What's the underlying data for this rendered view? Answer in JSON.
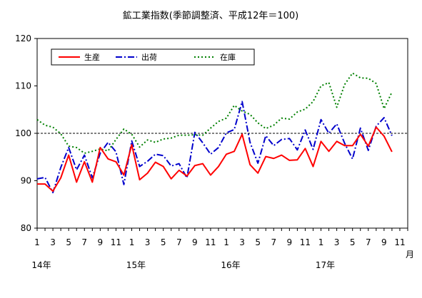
{
  "chart_data": {
    "type": "line",
    "title": "鉱工業指数(季節調整済、平成12年＝100)",
    "xlabel": "月",
    "ylabel": "",
    "ylim": [
      80,
      120
    ],
    "yticks": [
      "80",
      "90",
      "100",
      "110",
      "120"
    ],
    "x": [
      1,
      2,
      3,
      4,
      5,
      6,
      7,
      8,
      9,
      10,
      11,
      12,
      1,
      2,
      3,
      4,
      5,
      6,
      7,
      8,
      9,
      10,
      11,
      12,
      1,
      2,
      3,
      4,
      5,
      6,
      7,
      8,
      9,
      10,
      11,
      12,
      1,
      2,
      3,
      4,
      5,
      6,
      7,
      8,
      9,
      10
    ],
    "xtick_labels": [
      "1",
      "3",
      "5",
      "7",
      "9",
      "11",
      "1",
      "3",
      "5",
      "7",
      "9",
      "11",
      "1",
      "3",
      "5",
      "7",
      "9",
      "11",
      "1",
      "3",
      "5",
      "7",
      "9",
      "11"
    ],
    "years": [
      "14年",
      "15年",
      "16年",
      "17年"
    ],
    "reference_line": 100,
    "legend_position": "top-left",
    "grid": false,
    "series": [
      {
        "name": "生産",
        "color": "#ff0000",
        "style": "solid",
        "values": [
          89.3,
          89.3,
          87.8,
          90.6,
          95.4,
          89.7,
          94.0,
          89.7,
          97.0,
          94.6,
          94.0,
          91.2,
          97.6,
          90.2,
          91.6,
          93.9,
          93.0,
          90.4,
          92.2,
          91.0,
          93.2,
          93.6,
          91.2,
          93.0,
          95.6,
          96.2,
          99.8,
          93.4,
          91.6,
          95.1,
          94.7,
          95.4,
          94.3,
          94.4,
          96.8,
          93.0,
          98.3,
          96.2,
          98.3,
          97.4,
          97.4,
          99.8,
          97.3,
          101.3,
          99.4,
          96.1
        ]
      },
      {
        "name": "出荷",
        "color": "#0000cc",
        "style": "dashdot",
        "values": [
          90.4,
          90.7,
          87.5,
          92.8,
          97.0,
          92.3,
          95.4,
          90.6,
          95.8,
          98.1,
          96.1,
          89.2,
          98.4,
          93.0,
          94.1,
          95.6,
          95.3,
          93.1,
          93.6,
          90.6,
          100.2,
          98.0,
          95.6,
          97.0,
          100.1,
          100.8,
          106.7,
          98.1,
          93.7,
          99.5,
          97.4,
          98.7,
          98.9,
          96.5,
          100.7,
          96.6,
          102.9,
          100.0,
          102.0,
          97.9,
          94.6,
          101.1,
          96.4,
          101.5,
          103.3,
          99.5
        ]
      },
      {
        "name": "在庫",
        "color": "#008000",
        "style": "dotted",
        "values": [
          102.9,
          101.7,
          101.3,
          99.9,
          97.3,
          97.0,
          95.8,
          96.2,
          96.7,
          96.3,
          98.7,
          100.9,
          99.8,
          97.1,
          98.6,
          98.1,
          98.8,
          99.0,
          99.6,
          99.6,
          99.7,
          99.6,
          101.1,
          102.5,
          103.2,
          105.9,
          104.7,
          104.0,
          102.2,
          101.0,
          101.7,
          103.2,
          103.0,
          104.5,
          105.1,
          106.7,
          110.0,
          110.7,
          105.5,
          110.3,
          112.7,
          111.7,
          111.6,
          110.5,
          105.2,
          108.7
        ]
      }
    ]
  }
}
